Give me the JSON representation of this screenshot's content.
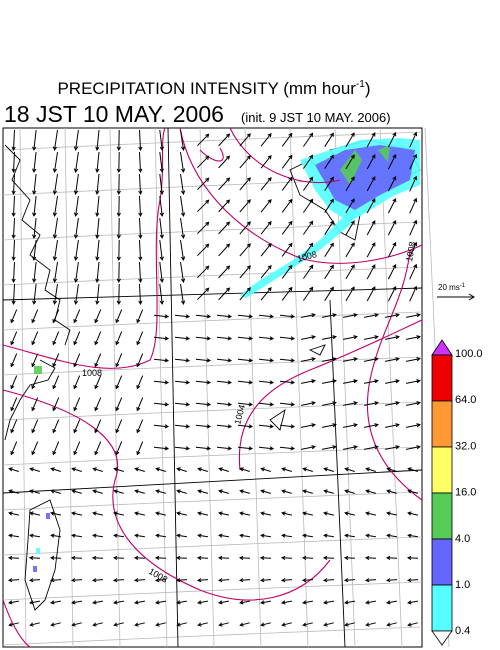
{
  "header": {
    "title": "PRECIPITATION INTENSITY (mm hour",
    "title_sup": "-1",
    "title_end": ")",
    "time": "18 JST 10 MAY. 2006",
    "init": "(init. 9 JST 10 MAY. 2006)"
  },
  "scale": {
    "label": "20 ms",
    "label_sup": "-1"
  },
  "colorbar": {
    "labels": [
      "100.0",
      "64.0",
      "32.0",
      "16.0",
      "4.0",
      "1.0",
      "0.4"
    ]
  },
  "isobars": {
    "labels": [
      "1008",
      "1004",
      "1008",
      "1008",
      "1008"
    ]
  }
}
